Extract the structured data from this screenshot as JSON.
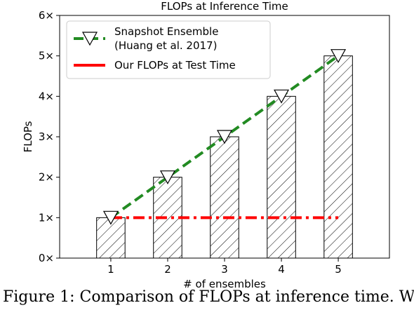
{
  "chart_data": {
    "type": "bar",
    "title": "FLOPs at Inference Time",
    "xlabel": "# of ensembles",
    "ylabel": "FLOPs",
    "categories": [
      "1",
      "2",
      "3",
      "4",
      "5"
    ],
    "values": [
      1,
      2,
      3,
      4,
      5
    ],
    "ylim": [
      0,
      6
    ],
    "yticks": [
      0,
      1,
      2,
      3,
      4,
      5,
      6
    ],
    "ytick_labels": [
      "0×",
      "1×",
      "2×",
      "3×",
      "4×",
      "5×",
      "6×"
    ],
    "grid": false,
    "bar_fill": "hatched",
    "lines": [
      {
        "name": "Snapshot Ensemble\n(Huang et al. 2017)",
        "legend_lines": [
          "Snapshot Ensemble",
          "(Huang et al. 2017)"
        ],
        "x": [
          1,
          2,
          3,
          4,
          5
        ],
        "y": [
          1,
          2,
          3,
          4,
          5
        ],
        "style": "dashed",
        "marker": "triangle-down",
        "color": "#228b22"
      },
      {
        "name": "Our FLOPs at Test Time",
        "legend_lines": [
          "Our FLOPs at Test Time"
        ],
        "x": [
          1,
          5
        ],
        "y": [
          1,
          1
        ],
        "style": "dash-dot",
        "marker": "none",
        "color": "#ff0000"
      }
    ],
    "legend_position": "top-left"
  },
  "caption": "Figure 1: Comparison of FLOPs at inference time. W"
}
